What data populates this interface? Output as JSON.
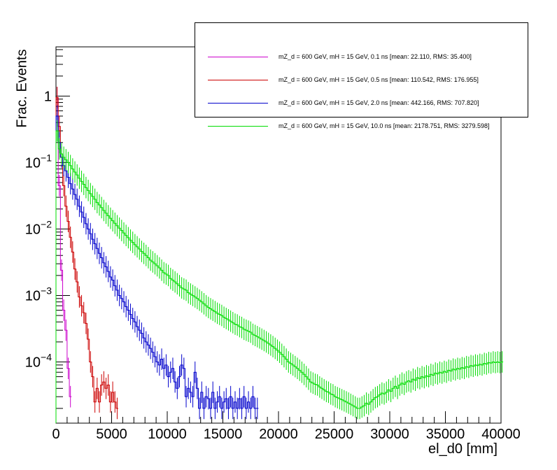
{
  "chart_data": {
    "type": "line",
    "title": "",
    "xlabel": "el_d0 [mm]",
    "ylabel": "Frac. Events",
    "xlim": [
      0,
      40000
    ],
    "ylim": [
      1.2e-05,
      5.5
    ],
    "yscale": "log",
    "grid": false,
    "legend_position": "top-right",
    "xticks": [
      0,
      5000,
      10000,
      15000,
      20000,
      25000,
      30000,
      35000,
      40000
    ],
    "yticks": [
      {
        "value": 1,
        "label": "1"
      },
      {
        "value": 0.1,
        "base": "10",
        "exp": "−1"
      },
      {
        "value": 0.01,
        "base": "10",
        "exp": "−2"
      },
      {
        "value": 0.001,
        "base": "10",
        "exp": "−3"
      },
      {
        "value": 0.0001,
        "base": "10",
        "exp": "−4"
      }
    ],
    "bin_width": 200,
    "series": [
      {
        "name": "mZ_d = 600 GeV, mH = 15 GeV, 0.1 ns [mean: 22.110, RMS: 35.400]",
        "color": "#cc00cc",
        "values": [
          0.95,
          0.045,
          0.0024,
          0.0006,
          0.0003,
          8e-05,
          3e-05
        ]
      },
      {
        "name": "mZ_d = 600 GeV, mH = 15 GeV, 0.5 ns [mean: 110.542, RMS: 176.955]",
        "color": "#cc0000",
        "values": [
          0.95,
          0.35,
          0.12,
          0.045,
          0.022,
          0.013,
          0.0075,
          0.0045,
          0.0025,
          0.0016,
          0.00095,
          0.0007,
          0.00055,
          0.00038,
          0.00022,
          0.0001,
          6e-05,
          2.5e-05,
          4e-05,
          2.5e-05,
          4.5e-05,
          5e-05,
          4e-05,
          4.5e-05,
          2.5e-05,
          3.5e-05,
          2.5e-05,
          2e-05
        ]
      },
      {
        "name": "mZ_d = 600 GeV, mH = 15 GeV, 2.0 ns [mean: 442.166, RMS: 707.820]",
        "color": "#0000cc",
        "values": [
          0.5,
          0.2,
          0.12,
          0.09,
          0.075,
          0.06,
          0.048,
          0.04,
          0.033,
          0.028,
          0.022,
          0.018,
          0.015,
          0.012,
          0.01,
          0.0085,
          0.007,
          0.006,
          0.0051,
          0.0043,
          0.0037,
          0.0031,
          0.0027,
          0.0023,
          0.0019,
          0.0017,
          0.0014,
          0.0012,
          0.001,
          0.0009,
          0.0008,
          0.00068,
          0.0006,
          0.00052,
          0.00045,
          0.0004,
          0.00034,
          0.0003,
          0.00027,
          0.00023,
          0.0002,
          0.00018,
          0.00016,
          0.00014,
          0.00012,
          0.0001,
          9e-05,
          0.00011,
          8e-05,
          9e-05,
          6e-05,
          7e-05,
          8e-05,
          5e-05,
          4e-05,
          6e-05,
          9e-05,
          8e-05,
          3e-05,
          4e-05,
          3.5e-05,
          3e-05,
          7e-05,
          4e-05,
          2e-05,
          3.5e-05,
          2e-05,
          3e-05,
          2.8e-05,
          2e-05,
          3.5e-05,
          2e-05,
          2.5e-05,
          3e-05,
          2e-05,
          2.5e-05,
          2.8e-05,
          2e-05,
          3e-05,
          2e-05,
          2.5e-05,
          2e-05,
          2.8e-05,
          2e-05,
          3e-05,
          2e-05,
          2.5e-05,
          2e-05,
          3e-05,
          2e-05,
          2e-05
        ]
      },
      {
        "name": "mZ_d = 600 GeV, mH = 15 GeV, 10.0 ns [mean: 2178.751, RMS: 3279.598]",
        "color": "#00dd00",
        "values": [
          0.3,
          0.16,
          0.135,
          0.12,
          0.11,
          0.1,
          0.09,
          0.08,
          0.072,
          0.065,
          0.058,
          0.052,
          0.047,
          0.042,
          0.038,
          0.034,
          0.031,
          0.028,
          0.025,
          0.023,
          0.021,
          0.019,
          0.0173,
          0.0158,
          0.0145,
          0.0133,
          0.0122,
          0.0112,
          0.0103,
          0.0095,
          0.0087,
          0.008,
          0.0074,
          0.0068,
          0.0063,
          0.0058,
          0.0054,
          0.005,
          0.0046,
          0.0043,
          0.004,
          0.0037,
          0.0034,
          0.0032,
          0.003,
          0.0028,
          0.0026,
          0.0024,
          0.0022,
          0.0021,
          0.002,
          0.0018,
          0.0017,
          0.0016,
          0.0015,
          0.0014,
          0.0013,
          0.00125,
          0.0012,
          0.0011,
          0.00105,
          0.001,
          0.00095,
          0.0009,
          0.00085,
          0.0008,
          0.00075,
          0.0007,
          0.00066,
          0.00063,
          0.0006,
          0.00057,
          0.00054,
          0.00052,
          0.0005,
          0.00047,
          0.00045,
          0.00043,
          0.00041,
          0.00039,
          0.00037,
          0.00036,
          0.00034,
          0.00033,
          0.00031,
          0.0003,
          0.00029,
          0.00028,
          0.00026,
          0.00025,
          0.00024,
          0.00023,
          0.00022,
          0.00021,
          0.0002,
          0.00019,
          0.00018,
          0.00017,
          0.00016,
          0.00015,
          0.00014,
          0.00013,
          0.00012,
          0.00011,
          0.0001,
          9.5e-05,
          9e-05,
          8.5e-05,
          8e-05,
          7.5e-05,
          7e-05,
          6.5e-05,
          6e-05,
          5.5e-05,
          5e-05,
          4.8e-05,
          4.6e-05,
          4.5e-05,
          4.2e-05,
          4e-05,
          3.8e-05,
          3.6e-05,
          3.5e-05,
          3.3e-05,
          3.2e-05,
          3e-05,
          2.9e-05,
          2.8e-05,
          2.7e-05,
          2.6e-05,
          2.5e-05,
          2.4e-05,
          2.3e-05,
          2.2e-05,
          2.1e-05,
          2e-05,
          2e-05,
          2.1e-05,
          2.2e-05,
          2.4e-05,
          2.3e-05,
          2.5e-05,
          2.7e-05,
          2.9e-05,
          3e-05,
          3.2e-05,
          3.4e-05,
          3.3e-05,
          3.5e-05,
          3.8e-05,
          3.6e-05,
          4e-05,
          4.3e-05,
          4e-05,
          4.5e-05,
          4.8e-05,
          4.6e-05,
          5e-05,
          5.2e-05,
          5e-05,
          5.5e-05,
          5.3e-05,
          5.8e-05,
          5.6e-05,
          6e-05,
          5.8e-05,
          6.2e-05,
          6e-05,
          6.5e-05,
          6.3e-05,
          6.8e-05,
          6.6e-05,
          7e-05,
          6.8e-05,
          7.2e-05,
          7e-05,
          7.5e-05,
          7.3e-05,
          7.8e-05,
          7.6e-05,
          8e-05,
          7.8e-05,
          8.2e-05,
          8e-05,
          8.5e-05,
          8.3e-05,
          8.8e-05,
          8.6e-05,
          9e-05,
          8.8e-05,
          9.2e-05,
          9e-05,
          9.5e-05,
          9.3e-05,
          9.8e-05,
          9.6e-05,
          0.0001,
          9.8e-05,
          0.0001,
          9.8e-05,
          0.0001
        ]
      }
    ]
  }
}
